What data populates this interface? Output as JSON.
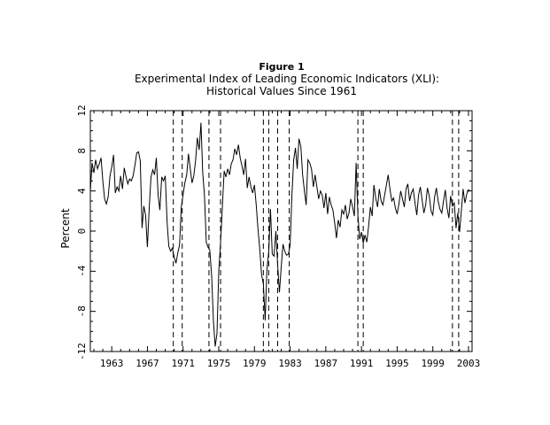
{
  "figure_label": "Figure 1",
  "chart_data": {
    "type": "line",
    "title": "Experimental Index of Leading Economic Indicators (XLI):",
    "subtitle": "Historical Values Since 1961",
    "xlabel": "",
    "ylabel": "Percent",
    "xlim": [
      1960.6,
      2003.4
    ],
    "ylim": [
      -12,
      12
    ],
    "xticks": [
      "1963",
      "1967",
      "1971",
      "1975",
      "1979",
      "1983",
      "1987",
      "1991",
      "1995",
      "1999",
      "2003"
    ],
    "yticks": [
      "-12",
      "-8",
      "-4",
      "0",
      "4",
      "8",
      "12"
    ],
    "grid": false,
    "legend": "none",
    "recession_lines": [
      1969.9,
      1970.9,
      1973.9,
      1975.2,
      1980.0,
      1980.6,
      1981.6,
      1982.9,
      1990.6,
      1991.2,
      2001.2,
      2001.9
    ],
    "series": [
      {
        "x": [
          1960.6,
          1960.8,
          1961.0,
          1961.2,
          1961.4,
          1961.6,
          1961.8,
          1962.0,
          1962.2,
          1962.4,
          1962.6,
          1962.8,
          1963.0,
          1963.2,
          1963.4,
          1963.6,
          1963.8,
          1964.0,
          1964.2,
          1964.4,
          1964.6,
          1964.8,
          1965.0,
          1965.2,
          1965.4,
          1965.6,
          1965.8,
          1966.0,
          1966.2,
          1966.4,
          1966.6,
          1966.8,
          1967.0,
          1967.2,
          1967.4,
          1967.6,
          1967.8,
          1968.0,
          1968.2,
          1968.4,
          1968.6,
          1968.8,
          1969.0,
          1969.2,
          1969.4,
          1969.6,
          1969.8,
          1970.0,
          1970.2,
          1970.4,
          1970.6,
          1970.8,
          1971.0,
          1971.2,
          1971.4,
          1971.6,
          1971.8,
          1972.0,
          1972.2,
          1972.4,
          1972.6,
          1972.8,
          1973.0,
          1973.2,
          1973.4,
          1973.6,
          1973.8,
          1974.0,
          1974.2,
          1974.4,
          1974.6,
          1974.8,
          1975.0,
          1975.2,
          1975.4,
          1975.6,
          1975.8,
          1976.0,
          1976.2,
          1976.4,
          1976.6,
          1976.8,
          1977.0,
          1977.2,
          1977.4,
          1977.6,
          1977.8,
          1978.0,
          1978.2,
          1978.4,
          1978.6,
          1978.8,
          1979.0,
          1979.2,
          1979.4,
          1979.6,
          1979.8,
          1980.0,
          1980.2,
          1980.4,
          1980.6,
          1980.8,
          1981.0,
          1981.2,
          1981.4,
          1981.6,
          1981.8,
          1982.0,
          1982.2,
          1982.4,
          1982.6,
          1982.8,
          1983.0,
          1983.2,
          1983.4,
          1983.6,
          1983.8,
          1984.0,
          1984.2,
          1984.4,
          1984.6,
          1984.8,
          1985.0,
          1985.2,
          1985.4,
          1985.6,
          1985.8,
          1986.0,
          1986.2,
          1986.4,
          1986.6,
          1986.8,
          1987.0,
          1987.2,
          1987.4,
          1987.6,
          1987.8,
          1988.0,
          1988.2,
          1988.4,
          1988.6,
          1988.8,
          1989.0,
          1989.2,
          1989.4,
          1989.6,
          1989.8,
          1990.0,
          1990.2,
          1990.4,
          1990.6,
          1990.8,
          1991.0,
          1991.2,
          1991.4,
          1991.6,
          1991.8,
          1992.0,
          1992.2,
          1992.4,
          1992.6,
          1992.8,
          1993.0,
          1993.2,
          1993.4,
          1993.6,
          1993.8,
          1994.0,
          1994.2,
          1994.4,
          1994.6,
          1994.8,
          1995.0,
          1995.2,
          1995.4,
          1995.6,
          1995.8,
          1996.0,
          1996.2,
          1996.4,
          1996.6,
          1996.8,
          1997.0,
          1997.2,
          1997.4,
          1997.6,
          1997.8,
          1998.0,
          1998.2,
          1998.4,
          1998.6,
          1998.8,
          1999.0,
          1999.2,
          1999.4,
          1999.6,
          1999.8,
          2000.0,
          2000.2,
          2000.4,
          2000.6,
          2000.8,
          2001.0,
          2001.2,
          2001.4,
          2001.6,
          2001.8,
          2002.0,
          2002.2,
          2002.4,
          2002.6,
          2002.8,
          2003.0,
          2003.2
        ],
        "y": [
          4.0,
          6.8,
          5.8,
          7.1,
          6.2,
          6.7,
          7.3,
          5.0,
          3.2,
          2.7,
          3.4,
          5.5,
          6.4,
          7.6,
          3.8,
          4.4,
          4.0,
          5.5,
          4.2,
          6.3,
          5.4,
          4.7,
          5.2,
          5.0,
          5.5,
          6.6,
          7.8,
          7.9,
          7.0,
          0.3,
          2.5,
          1.6,
          -1.6,
          2.3,
          5.4,
          6.1,
          5.6,
          7.3,
          3.6,
          2.1,
          5.4,
          5.0,
          5.5,
          1.0,
          -1.5,
          -2.0,
          -1.7,
          -2.6,
          -3.2,
          -2.2,
          -1.4,
          2.4,
          3.6,
          4.8,
          5.6,
          7.7,
          6.2,
          4.8,
          5.5,
          7.0,
          9.3,
          8.1,
          10.8,
          5.8,
          3.5,
          -1.1,
          -1.6,
          -1.9,
          -4.5,
          -9.0,
          -11.5,
          -10.2,
          -4.0,
          -1.2,
          2.3,
          6.0,
          5.4,
          6.2,
          5.6,
          6.7,
          7.1,
          8.2,
          7.6,
          8.6,
          7.3,
          6.5,
          5.6,
          7.2,
          4.3,
          5.4,
          4.4,
          3.8,
          4.6,
          2.6,
          0.2,
          -1.8,
          -4.3,
          -5.3,
          -8.9,
          -3.8,
          -2.1,
          2.2,
          -2.3,
          -2.5,
          0.0,
          -3.4,
          -6.1,
          -3.6,
          -1.3,
          -2.0,
          -2.4,
          -2.3,
          -1.4,
          3.6,
          7.1,
          8.3,
          6.2,
          9.2,
          8.4,
          5.6,
          4.0,
          2.6,
          7.1,
          6.8,
          6.2,
          4.4,
          5.6,
          4.4,
          3.2,
          4.0,
          3.6,
          2.3,
          3.8,
          1.7,
          3.4,
          2.6,
          2.1,
          0.8,
          -0.7,
          1.1,
          0.4,
          2.1,
          1.7,
          2.6,
          1.2,
          1.8,
          3.2,
          2.4,
          1.5,
          6.8,
          1.6,
          -0.8,
          -0.1,
          -1.2,
          -0.4,
          -1.1,
          0.5,
          2.4,
          1.5,
          4.6,
          3.3,
          2.4,
          4.2,
          3.0,
          2.6,
          3.6,
          4.6,
          5.6,
          4.1,
          3.0,
          3.3,
          2.3,
          1.7,
          2.7,
          4.0,
          3.2,
          2.4,
          4.2,
          4.7,
          3.0,
          3.8,
          4.2,
          2.8,
          1.6,
          3.6,
          4.4,
          3.1,
          1.8,
          2.6,
          4.3,
          3.5,
          2.0,
          1.6,
          3.4,
          4.3,
          3.0,
          2.2,
          1.8,
          3.0,
          4.1,
          2.3,
          1.3,
          3.5,
          2.5,
          2.8,
          0.3,
          1.8,
          -0.1,
          2.0,
          4.2,
          2.8,
          3.7,
          4.1,
          4.0
        ]
      }
    ]
  }
}
